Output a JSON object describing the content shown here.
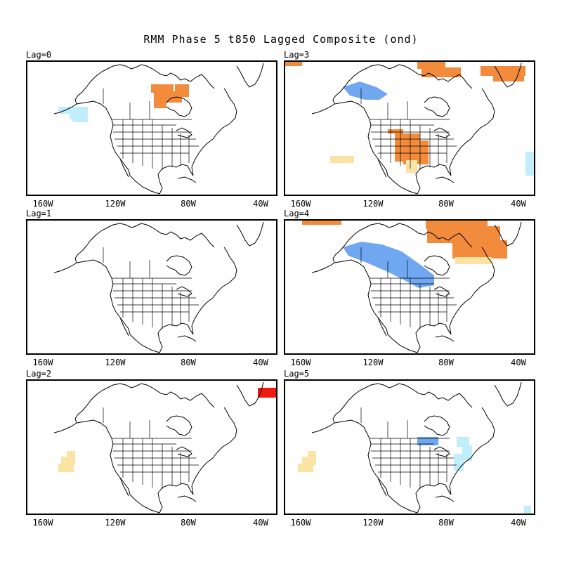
{
  "title": "RMM Phase 5 t850 Lagged Composite (ond)",
  "colors": {
    "warm_light": "#fbe3a4",
    "warm": "#f28b3c",
    "warm_strong": "#ee1c0f",
    "cool_light": "#c2eefb",
    "cool": "#6fa8f0",
    "outline": "#000000",
    "state_lines": "#000000"
  },
  "lon_ticks": [
    "160W",
    "120W",
    "80W",
    "40W"
  ],
  "panels": [
    {
      "label": "Lag=0"
    },
    {
      "label": "Lag=3"
    },
    {
      "label": "Lag=1"
    },
    {
      "label": "Lag=4"
    },
    {
      "label": "Lag=2"
    },
    {
      "label": "Lag=5"
    }
  ]
}
